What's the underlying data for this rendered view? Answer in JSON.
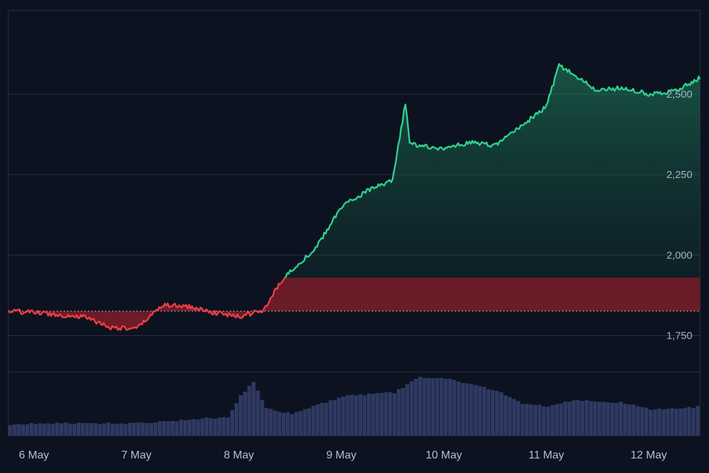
{
  "chart_data": {
    "type": "area",
    "x_axis": {
      "ticks": [
        "6 May",
        "7 May",
        "8 May",
        "9 May",
        "10 May",
        "11 May",
        "12 May"
      ],
      "range": [
        "5 May 18:00",
        "12 May 12:00"
      ]
    },
    "y_axis": {
      "ticks": [
        1750,
        2000,
        2250,
        2500
      ],
      "tick_labels": [
        "1,750",
        "2,000",
        "2,250",
        "2,500"
      ],
      "range": [
        1650,
        2760
      ],
      "position": "right",
      "grid": true
    },
    "baseline": 1826,
    "colors": {
      "above": "#2fd08c",
      "below": "#ee3e46",
      "volume": "#2e3a62",
      "baseline": "#c8ccd6",
      "grid": "#2a3142",
      "background": "#0d1220"
    },
    "price_series": {
      "x": [
        "5 May 18:00",
        "6 May 00:00",
        "6 May 06:00",
        "6 May 12:00",
        "6 May 18:00",
        "7 May 00:00",
        "7 May 06:00",
        "7 May 12:00",
        "7 May 18:00",
        "8 May 00:00",
        "8 May 06:00",
        "8 May 09:00",
        "8 May 12:00",
        "8 May 18:00",
        "9 May 00:00",
        "9 May 06:00",
        "9 May 12:00",
        "9 May 15:00",
        "9 May 16:00",
        "9 May 18:00",
        "10 May 00:00",
        "10 May 06:00",
        "10 May 12:00",
        "10 May 18:00",
        "11 May 00:00",
        "11 May 03:00",
        "11 May 12:00",
        "11 May 18:00",
        "12 May 00:00",
        "12 May 06:00",
        "12 May 12:00"
      ],
      "y": [
        1826,
        1822,
        1814,
        1808,
        1775,
        1770,
        1845,
        1840,
        1822,
        1808,
        1830,
        1900,
        1950,
        2020,
        2150,
        2200,
        2230,
        2470,
        2350,
        2340,
        2330,
        2350,
        2340,
        2400,
        2460,
        2590,
        2510,
        2520,
        2500,
        2510,
        2550
      ]
    },
    "volume_series": {
      "x": [
        "5 May 18:00",
        "6 May 00:00",
        "6 May 12:00",
        "7 May 00:00",
        "7 May 12:00",
        "7 May 21:00",
        "8 May 00:00",
        "8 May 03:00",
        "8 May 06:00",
        "8 May 12:00",
        "9 May 00:00",
        "9 May 12:00",
        "9 May 18:00",
        "10 May 00:00",
        "10 May 12:00",
        "10 May 18:00",
        "11 May 00:00",
        "11 May 06:00",
        "11 May 18:00",
        "12 May 00:00",
        "12 May 12:00"
      ],
      "y": [
        0.17,
        0.2,
        0.2,
        0.2,
        0.26,
        0.3,
        0.65,
        0.88,
        0.45,
        0.35,
        0.64,
        0.7,
        0.95,
        0.93,
        0.73,
        0.52,
        0.48,
        0.58,
        0.53,
        0.42,
        0.47
      ]
    }
  }
}
